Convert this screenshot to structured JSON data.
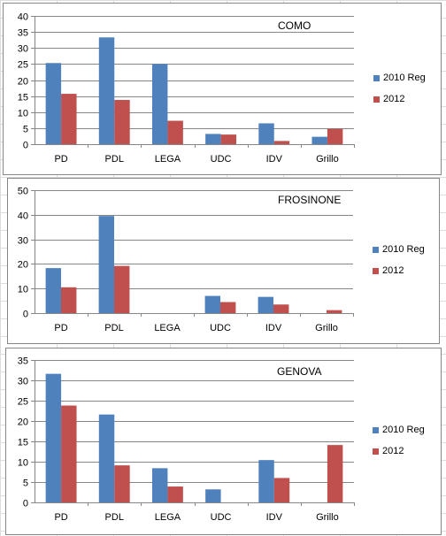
{
  "colors": {
    "series_2010": "#4f81bd",
    "series_2012": "#c0504d",
    "grid": "#868686"
  },
  "chart_data": [
    {
      "type": "bar",
      "title": "COMO",
      "categories": [
        "PD",
        "PDL",
        "LEGA",
        "UDC",
        "IDV",
        "Grillo"
      ],
      "series": [
        {
          "name": "2010 Reg",
          "values": [
            25.3,
            33.3,
            25,
            3.2,
            6.5,
            2.3
          ]
        },
        {
          "name": "2012",
          "values": [
            15.7,
            13.8,
            7.3,
            3,
            1,
            4.8
          ]
        }
      ],
      "ylim": [
        0,
        40
      ],
      "yticks": [
        0,
        5,
        10,
        15,
        20,
        25,
        30,
        35,
        40
      ],
      "grid": true,
      "legend": "right"
    },
    {
      "type": "bar",
      "title": "FROSINONE",
      "categories": [
        "PD",
        "PDL",
        "LEGA",
        "UDC",
        "IDV",
        "Grillo"
      ],
      "series": [
        {
          "name": "2010 Reg",
          "values": [
            18.3,
            39.5,
            0,
            7,
            6.6,
            0
          ]
        },
        {
          "name": "2012",
          "values": [
            10.5,
            19.2,
            0,
            4.5,
            3.5,
            1.2
          ]
        }
      ],
      "ylim": [
        0,
        50
      ],
      "yticks": [
        0,
        10,
        20,
        30,
        40,
        50
      ],
      "grid": true,
      "legend": "right"
    },
    {
      "type": "bar",
      "title": "GENOVA",
      "categories": [
        "PD",
        "PDL",
        "LEGA",
        "UDC",
        "IDV",
        "Grillo"
      ],
      "series": [
        {
          "name": "2010 Reg",
          "values": [
            31.6,
            21.6,
            8.4,
            3.2,
            10.4,
            0
          ]
        },
        {
          "name": "2012",
          "values": [
            23.8,
            9.1,
            3.9,
            0,
            6,
            14.1
          ]
        }
      ],
      "ylim": [
        0,
        35
      ],
      "yticks": [
        0,
        5,
        10,
        15,
        20,
        25,
        30,
        35
      ],
      "grid": true,
      "legend": "right"
    }
  ]
}
